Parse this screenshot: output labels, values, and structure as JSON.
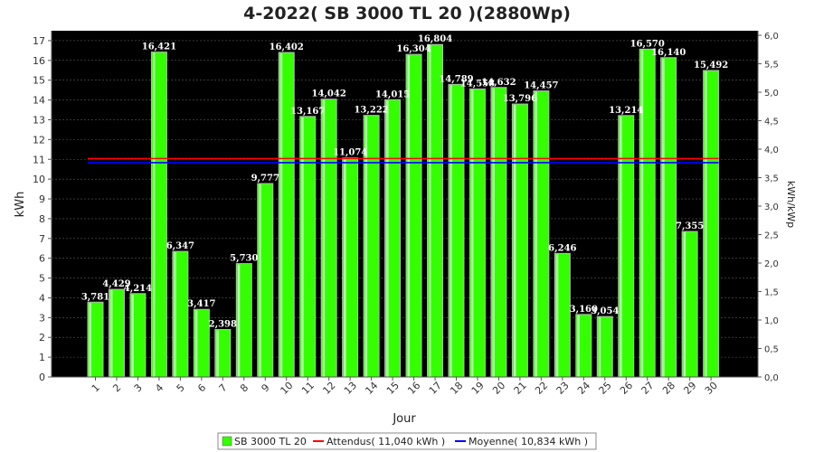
{
  "chart_data": {
    "type": "bar",
    "title": "4-2022( SB 3000 TL 20 )(2880Wp)",
    "xlabel": "Jour",
    "ylabel": "kWh",
    "ylabel_right": "kWh/kWp",
    "ylim": [
      0,
      17.5
    ],
    "y_ticks": [
      0,
      1,
      2,
      3,
      4,
      5,
      6,
      7,
      8,
      9,
      10,
      11,
      12,
      13,
      14,
      15,
      16,
      17
    ],
    "ylim_right": [
      0,
      6.08
    ],
    "y_ticks_right": [
      "0,0",
      "0,5",
      "1,0",
      "1,5",
      "2,0",
      "2,5",
      "3,0",
      "3,5",
      "4,0",
      "4,5",
      "5,0",
      "5,5",
      "6,0"
    ],
    "categories": [
      "1",
      "2",
      "3",
      "4",
      "5",
      "6",
      "7",
      "8",
      "9",
      "10",
      "11",
      "12",
      "13",
      "14",
      "15",
      "16",
      "17",
      "18",
      "19",
      "20",
      "21",
      "22",
      "23",
      "24",
      "25",
      "26",
      "27",
      "28",
      "29",
      "30"
    ],
    "series": [
      {
        "name": "SB 3000 TL 20",
        "color": "#33ff00",
        "values": [
          3.781,
          4.429,
          4.214,
          16.421,
          6.347,
          3.417,
          2.398,
          5.73,
          9.777,
          16.402,
          13.167,
          14.042,
          11.074,
          13.222,
          14.015,
          16.304,
          16.804,
          14.789,
          14.558,
          14.632,
          13.796,
          14.457,
          6.246,
          3.16,
          3.054,
          13.214,
          16.57,
          16.14,
          7.355,
          15.492
        ],
        "labels": [
          "3,781",
          "4,429",
          "4,214",
          "16,421",
          "6,347",
          "3,417",
          "2,398",
          "5,730",
          "9,777",
          "16,402",
          "13,167",
          "14,042",
          "11,074",
          "13,222",
          "14,015",
          "16,304",
          "16,804",
          "14,789",
          "14,558",
          "14,632",
          "13,796",
          "14,457",
          "6,246",
          "3,160",
          "3,054",
          "13,214",
          "16,570",
          "16,140",
          "7,355",
          "15,492"
        ]
      }
    ],
    "reference_lines": [
      {
        "name": "Attendus( 11,040 kWh )",
        "value": 11.04,
        "color": "#ff0000"
      },
      {
        "name": "Moyenne( 10,834 kWh )",
        "value": 10.834,
        "color": "#0000ff"
      }
    ],
    "background": "#000000",
    "grid": true,
    "legend_position": "bottom"
  }
}
